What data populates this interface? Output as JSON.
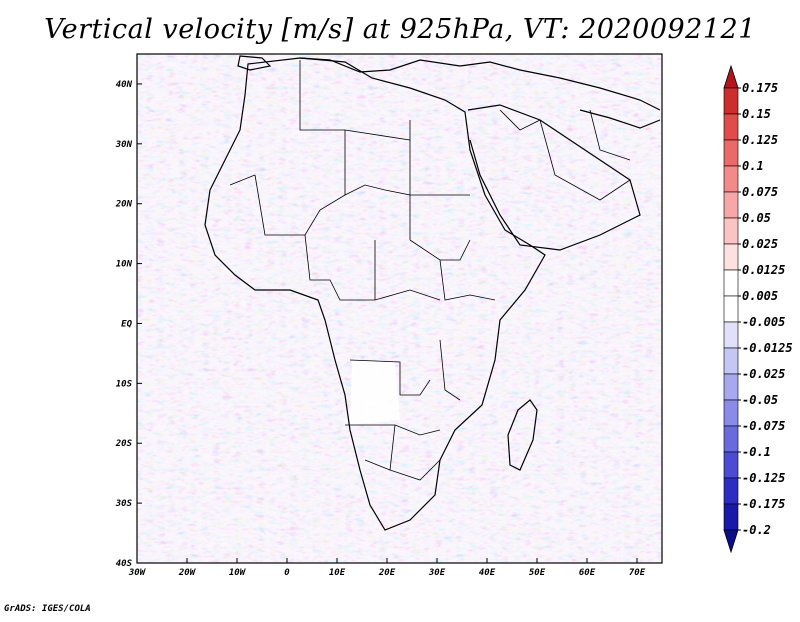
{
  "title": "Vertical velocity [m/s] at 925hPa, VT: 2020092121",
  "credit": "GrADS: IGES/COLA",
  "map": {
    "lon_range": [
      -30,
      75
    ],
    "lat_range": [
      -40,
      45
    ],
    "lon_ticks": [
      {
        "value": -30,
        "label": "30W"
      },
      {
        "value": -20,
        "label": "20W"
      },
      {
        "value": -10,
        "label": "10W"
      },
      {
        "value": 0,
        "label": "0"
      },
      {
        "value": 10,
        "label": "10E"
      },
      {
        "value": 20,
        "label": "20E"
      },
      {
        "value": 30,
        "label": "30E"
      },
      {
        "value": 40,
        "label": "40E"
      },
      {
        "value": 50,
        "label": "50E"
      },
      {
        "value": 60,
        "label": "60E"
      },
      {
        "value": 70,
        "label": "70E"
      }
    ],
    "lat_ticks": [
      {
        "value": 40,
        "label": "40N"
      },
      {
        "value": 30,
        "label": "30N"
      },
      {
        "value": 20,
        "label": "20N"
      },
      {
        "value": 10,
        "label": "10N"
      },
      {
        "value": 0,
        "label": "EQ"
      },
      {
        "value": -10,
        "label": "10S"
      },
      {
        "value": -20,
        "label": "20S"
      },
      {
        "value": -30,
        "label": "30S"
      },
      {
        "value": -40,
        "label": "40S"
      }
    ]
  },
  "colorbar": {
    "labels": [
      "0.175",
      "0.15",
      "0.125",
      "0.1",
      "0.075",
      "0.05",
      "0.025",
      "0.0125",
      "0.005",
      "-0.005",
      "-0.0125",
      "-0.025",
      "-0.05",
      "-0.075",
      "-0.1",
      "-0.125",
      "-0.175",
      "-0.2"
    ],
    "colors": [
      "#b4141e",
      "#cd2d2d",
      "#e04b4b",
      "#ea6a6a",
      "#f28a8a",
      "#f6a8a8",
      "#fac4c4",
      "#fde0e0",
      "#ffffff",
      "#ffffff",
      "#e0e0fb",
      "#c6c6f5",
      "#a8a8ef",
      "#8a8ae8",
      "#6a6adf",
      "#4b4bd4",
      "#2d2dc4",
      "#1a1aa8",
      "#0d0d8c"
    ]
  }
}
